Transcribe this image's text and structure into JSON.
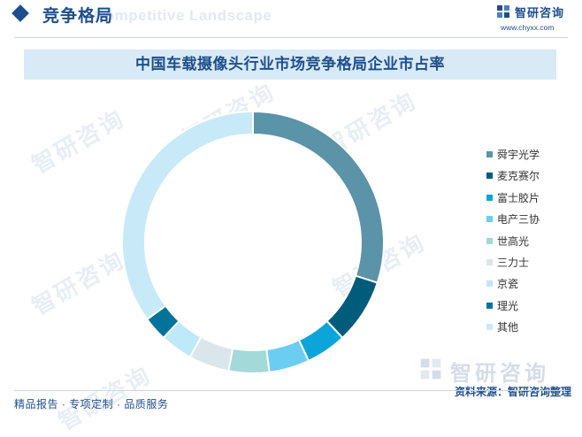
{
  "header": {
    "title": "竞争格局",
    "subtitle": "Competitive Landscape",
    "brand_name": "智研咨询",
    "brand_url": "www.chyxx.com",
    "accent": "#1f4e8c"
  },
  "watermark_text": "智研咨询",
  "footer": {
    "left_text": "精品报告 · 专项定制 · 品质服务",
    "source": "资料来源：智研咨询整理",
    "brand_name": "智研咨询"
  },
  "chart_data": {
    "type": "pie",
    "title": "中国车载摄像头行业市场竞争格局企业市占率",
    "donut": true,
    "legend_position": "right",
    "series": [
      {
        "name": "舜宇光学",
        "value": 30,
        "color": "#5b93a8"
      },
      {
        "name": "麦克赛尔",
        "value": 8,
        "color": "#005c7b"
      },
      {
        "name": "富士胶片",
        "value": 5,
        "color": "#0ba5d9"
      },
      {
        "name": "电产三协",
        "value": 5,
        "color": "#6ccdf2"
      },
      {
        "name": "世高光",
        "value": 5,
        "color": "#a3d9d9"
      },
      {
        "name": "三力士",
        "value": 5,
        "color": "#dae6ec"
      },
      {
        "name": "京瓷",
        "value": 4,
        "color": "#bde9f8"
      },
      {
        "name": "理光",
        "value": 3,
        "color": "#03739c"
      },
      {
        "name": "其他",
        "value": 35,
        "color": "#c8eaf8"
      }
    ]
  }
}
